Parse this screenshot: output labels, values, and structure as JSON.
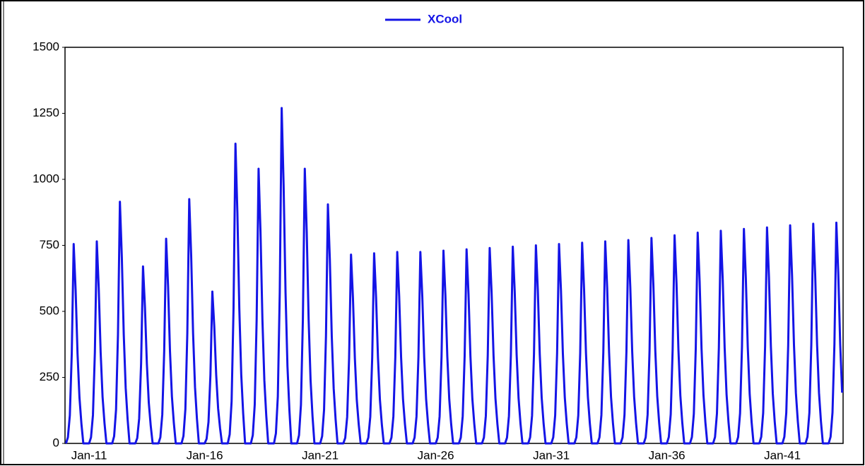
{
  "chart_data": {
    "type": "line",
    "series": [
      {
        "name": "XCool",
        "color": "#1414e6",
        "values": [
          0,
          23,
          106,
          340,
          755,
          581,
          340,
          174,
          76,
          0,
          0,
          0,
          0,
          23,
          107,
          344,
          765,
          589,
          344,
          176,
          77,
          0,
          0,
          0,
          0,
          27,
          128,
          412,
          915,
          705,
          412,
          210,
          92,
          0,
          0,
          0,
          0,
          20,
          94,
          302,
          670,
          516,
          302,
          154,
          67,
          0,
          0,
          0,
          0,
          23,
          109,
          349,
          775,
          597,
          349,
          178,
          78,
          0,
          0,
          0,
          0,
          28,
          130,
          416,
          925,
          712,
          416,
          213,
          93,
          0,
          0,
          0,
          0,
          17,
          81,
          259,
          575,
          443,
          259,
          132,
          58,
          0,
          0,
          0,
          0,
          34,
          159,
          511,
          1135,
          874,
          511,
          261,
          114,
          0,
          0,
          0,
          0,
          31,
          146,
          468,
          1040,
          801,
          468,
          239,
          104,
          0,
          0,
          0,
          0,
          38,
          178,
          572,
          1270,
          978,
          572,
          292,
          127,
          0,
          0,
          0,
          0,
          31,
          146,
          468,
          1040,
          801,
          468,
          239,
          104,
          0,
          0,
          0,
          0,
          27,
          127,
          407,
          905,
          697,
          407,
          208,
          91,
          0,
          0,
          0,
          0,
          21,
          100,
          322,
          715,
          551,
          322,
          164,
          72,
          0,
          0,
          0,
          0,
          22,
          101,
          324,
          720,
          554,
          324,
          166,
          72,
          0,
          0,
          0,
          0,
          22,
          102,
          326,
          725,
          558,
          326,
          167,
          73,
          0,
          0,
          0,
          0,
          22,
          102,
          326,
          725,
          558,
          326,
          167,
          73,
          0,
          0,
          0,
          0,
          22,
          102,
          329,
          730,
          562,
          329,
          168,
          73,
          0,
          0,
          0,
          0,
          22,
          103,
          331,
          735,
          566,
          331,
          169,
          74,
          0,
          0,
          0,
          0,
          22,
          104,
          333,
          740,
          570,
          333,
          170,
          74,
          0,
          0,
          0,
          0,
          22,
          104,
          335,
          745,
          574,
          335,
          171,
          75,
          0,
          0,
          0,
          0,
          23,
          105,
          338,
          750,
          578,
          338,
          173,
          75,
          0,
          0,
          0,
          0,
          23,
          106,
          340,
          755,
          581,
          340,
          174,
          76,
          0,
          0,
          0,
          0,
          23,
          106,
          342,
          760,
          585,
          342,
          175,
          76,
          0,
          0,
          0,
          0,
          23,
          107,
          344,
          765,
          589,
          344,
          176,
          77,
          0,
          0,
          0,
          0,
          23,
          108,
          347,
          770,
          593,
          347,
          177,
          77,
          0,
          0,
          0,
          0,
          23,
          109,
          350,
          778,
          599,
          350,
          179,
          78,
          0,
          0,
          0,
          0,
          24,
          110,
          355,
          788,
          607,
          355,
          181,
          79,
          0,
          0,
          0,
          0,
          24,
          112,
          359,
          798,
          614,
          359,
          184,
          80,
          0,
          0,
          0,
          0,
          24,
          113,
          362,
          805,
          620,
          362,
          185,
          81,
          0,
          0,
          0,
          0,
          24,
          114,
          365,
          812,
          625,
          365,
          187,
          81,
          0,
          0,
          0,
          0,
          25,
          115,
          368,
          818,
          630,
          368,
          188,
          82,
          0,
          0,
          0,
          0,
          25,
          116,
          372,
          826,
          636,
          372,
          190,
          83,
          0,
          0,
          0,
          0,
          25,
          116,
          374,
          832,
          641,
          374,
          191,
          83,
          0,
          0,
          0,
          0,
          25,
          117,
          376,
          836,
          644,
          376,
          192
        ]
      }
    ],
    "categories": [
      null,
      null,
      null,
      null,
      null,
      null,
      null,
      null,
      null,
      null,
      null,
      null,
      "Jan-11",
      null,
      null,
      null,
      null,
      null,
      null,
      null,
      null,
      null,
      null,
      null,
      null,
      null,
      null,
      null,
      null,
      null,
      null,
      null,
      null,
      null,
      null,
      null,
      null,
      null,
      null,
      null,
      null,
      null,
      null,
      null,
      null,
      null,
      null,
      null,
      null,
      null,
      null,
      null,
      null,
      null,
      null,
      null,
      null,
      null,
      null,
      null,
      null,
      null,
      null,
      null,
      null,
      null,
      null,
      null,
      null,
      null,
      null,
      null,
      "Jan-16",
      null,
      null,
      null,
      null,
      null,
      null,
      null,
      null,
      null,
      null,
      null,
      null,
      null,
      null,
      null,
      null,
      null,
      null,
      null,
      null,
      null,
      null,
      null,
      null,
      null,
      null,
      null,
      null,
      null,
      null,
      null,
      null,
      null,
      null,
      null,
      null,
      null,
      null,
      null,
      null,
      null,
      null,
      null,
      null,
      null,
      null,
      null,
      null,
      null,
      null,
      null,
      null,
      null,
      null,
      null,
      null,
      null,
      null,
      null,
      "Jan-21",
      null,
      null,
      null,
      null,
      null,
      null,
      null,
      null,
      null,
      null,
      null,
      null,
      null,
      null,
      null,
      null,
      null,
      null,
      null,
      null,
      null,
      null,
      null,
      null,
      null,
      null,
      null,
      null,
      null,
      null,
      null,
      null,
      null,
      null,
      null,
      null,
      null,
      null,
      null,
      null,
      null,
      null,
      null,
      null,
      null,
      null,
      null,
      null,
      null,
      null,
      null,
      null,
      null,
      null,
      null,
      null,
      null,
      null,
      null,
      "Jan-26",
      null,
      null,
      null,
      null,
      null,
      null,
      null,
      null,
      null,
      null,
      null,
      null,
      null,
      null,
      null,
      null,
      null,
      null,
      null,
      null,
      null,
      null,
      null,
      null,
      null,
      null,
      null,
      null,
      null,
      null,
      null,
      null,
      null,
      null,
      null,
      null,
      null,
      null,
      null,
      null,
      null,
      null,
      null,
      null,
      null,
      null,
      null,
      null,
      null,
      null,
      null,
      null,
      null,
      null,
      null,
      null,
      null,
      null,
      null,
      "Jan-31",
      null,
      null,
      null,
      null,
      null,
      null,
      null,
      null,
      null,
      null,
      null,
      null,
      null,
      null,
      null,
      null,
      null,
      null,
      null,
      null,
      null,
      null,
      null,
      null,
      null,
      null,
      null,
      null,
      null,
      null,
      null,
      null,
      null,
      null,
      null,
      null,
      null,
      null,
      null,
      null,
      null,
      null,
      null,
      null,
      null,
      null,
      null,
      null,
      null,
      null,
      null,
      null,
      null,
      null,
      null,
      null,
      null,
      null,
      null,
      "Jan-36",
      null,
      null,
      null,
      null,
      null,
      null,
      null,
      null,
      null,
      null,
      null,
      null,
      null,
      null,
      null,
      null,
      null,
      null,
      null,
      null,
      null,
      null,
      null,
      null,
      null,
      null,
      null,
      null,
      null,
      null,
      null,
      null,
      null,
      null,
      null,
      null,
      null,
      null,
      null,
      null,
      null,
      null,
      null,
      null,
      null,
      null,
      null,
      null,
      null,
      null,
      null,
      null,
      null,
      null,
      null,
      null,
      null,
      null,
      null,
      "Jan-41",
      null,
      null,
      null,
      null,
      null,
      null,
      null,
      null,
      null,
      null,
      null,
      null,
      null,
      null,
      null,
      null,
      null,
      null,
      null,
      null,
      null,
      null,
      null,
      null,
      null,
      null,
      null,
      null,
      null,
      null,
      null
    ],
    "ylim": [
      0,
      1500
    ],
    "yticks": [
      0,
      250,
      500,
      750,
      1000,
      1250,
      1500
    ],
    "legend": "top"
  }
}
